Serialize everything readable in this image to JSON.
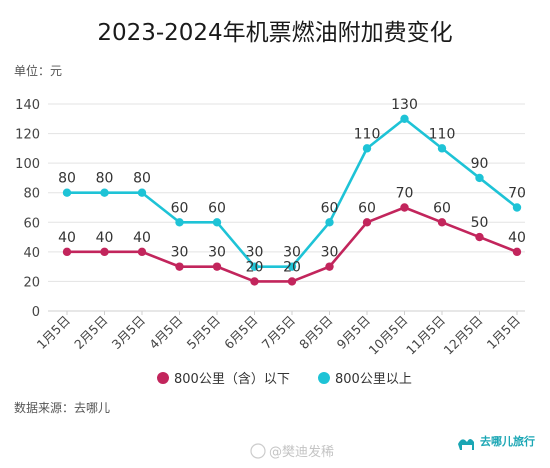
{
  "chart_data": {
    "type": "line",
    "title": "2023-2024年机票燃油附加费变化",
    "unit_label": "单位：元",
    "categories": [
      "1月5日",
      "2月5日",
      "3月5日",
      "4月5日",
      "5月5日",
      "6月5日",
      "7月5日",
      "8月5日",
      "9月5日",
      "10月5日",
      "11月5日",
      "12月5日",
      "1月5日"
    ],
    "ylim": [
      0,
      140
    ],
    "yticks": [
      0,
      20,
      40,
      60,
      80,
      100,
      120,
      140
    ],
    "grid": true,
    "legend_position": "bottom",
    "series": [
      {
        "name": "800公里（含）以下",
        "color": "#c2255c",
        "values": [
          40,
          40,
          40,
          30,
          30,
          20,
          20,
          30,
          60,
          70,
          60,
          50,
          40
        ]
      },
      {
        "name": "800公里以上",
        "color": "#1ec3d6",
        "values": [
          80,
          80,
          80,
          60,
          60,
          30,
          30,
          60,
          110,
          130,
          110,
          90,
          70
        ]
      }
    ]
  },
  "source_text": "数据来源：去哪儿",
  "watermark_text": "@樊迪发稀",
  "brand": {
    "name": "去哪儿旅行",
    "icon": "camel-icon"
  }
}
